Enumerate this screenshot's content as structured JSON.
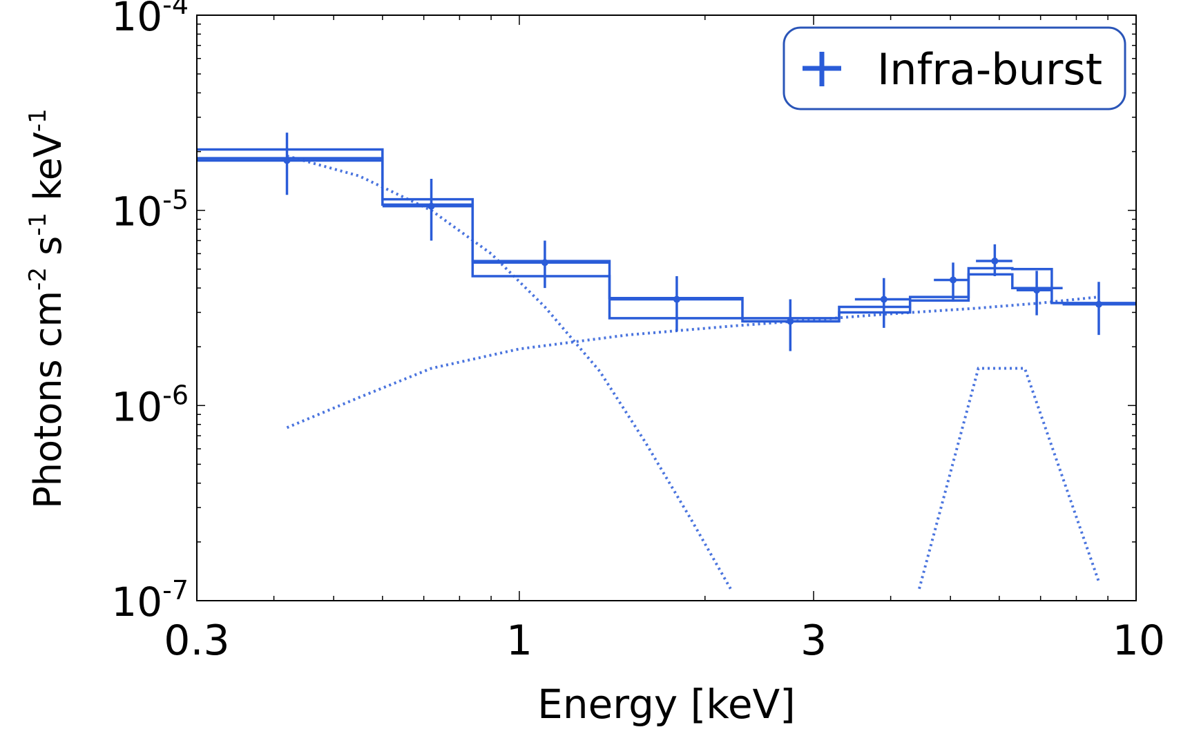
{
  "chart_data": {
    "type": "scatter",
    "title": "",
    "xlabel": "Energy [keV]",
    "ylabel_parts": [
      "Photons cm",
      "-2",
      " s",
      "-1",
      " keV",
      "-1"
    ],
    "xscale": "log",
    "yscale": "log",
    "xlim": [
      0.3,
      10
    ],
    "ylim": [
      1e-07,
      0.0001
    ],
    "x_ticks": [
      {
        "value": 0.3,
        "label": "0.3"
      },
      {
        "value": 1,
        "label": "1"
      },
      {
        "value": 3,
        "label": "3"
      },
      {
        "value": 10,
        "label": "10"
      }
    ],
    "y_ticks": [
      {
        "value": 0.0001,
        "base": "10",
        "exp": "-4"
      },
      {
        "value": 1e-05,
        "base": "10",
        "exp": "-5"
      },
      {
        "value": 1e-06,
        "base": "10",
        "exp": "-6"
      },
      {
        "value": 1e-07,
        "base": "10",
        "exp": "-7"
      }
    ],
    "legend": {
      "position": "top-right",
      "label": "Infra-burst"
    },
    "colors": {
      "series": "#2a5cd8",
      "frame": "#000000",
      "legend_border": "#2a55b8"
    },
    "points": [
      {
        "x": 0.42,
        "xlo": 0.3,
        "xhi": 0.6,
        "y": 1.8e-05,
        "ylo": 1.2e-05,
        "yhi": 2.5e-05
      },
      {
        "x": 0.72,
        "xlo": 0.6,
        "xhi": 0.84,
        "y": 1.05e-05,
        "ylo": 7e-06,
        "yhi": 1.45e-05
      },
      {
        "x": 1.1,
        "xlo": 0.84,
        "xhi": 1.4,
        "y": 5.4e-06,
        "ylo": 4e-06,
        "yhi": 7e-06
      },
      {
        "x": 1.8,
        "xlo": 1.4,
        "xhi": 2.3,
        "y": 3.5e-06,
        "ylo": 2.4e-06,
        "yhi": 4.6e-06
      },
      {
        "x": 2.75,
        "xlo": 2.3,
        "xhi": 3.3,
        "y": 2.7e-06,
        "ylo": 1.9e-06,
        "yhi": 3.5e-06
      },
      {
        "x": 3.9,
        "xlo": 3.5,
        "xhi": 4.3,
        "y": 3.5e-06,
        "ylo": 2.5e-06,
        "yhi": 4.5e-06
      },
      {
        "x": 5.05,
        "xlo": 4.7,
        "xhi": 5.35,
        "y": 4.4e-06,
        "ylo": 3.4e-06,
        "yhi": 5.4e-06
      },
      {
        "x": 5.9,
        "xlo": 5.5,
        "xhi": 6.3,
        "y": 5.5e-06,
        "ylo": 4.6e-06,
        "yhi": 6.7e-06
      },
      {
        "x": 6.9,
        "xlo": 6.4,
        "xhi": 7.3,
        "y": 3.9e-06,
        "ylo": 2.9e-06,
        "yhi": 4.9e-06
      },
      {
        "x": 8.7,
        "xlo": 7.6,
        "xhi": 10,
        "y": 3.3e-06,
        "ylo": 2.3e-06,
        "yhi": 4.3e-06
      }
    ],
    "model_upper": [
      [
        0.3,
        2.05e-05
      ],
      [
        0.6,
        2.05e-05
      ],
      [
        0.6,
        1.14e-05
      ],
      [
        0.84,
        1.14e-05
      ],
      [
        0.84,
        5.5e-06
      ],
      [
        1.4,
        5.5e-06
      ],
      [
        1.4,
        3.55e-06
      ],
      [
        2.3,
        3.55e-06
      ],
      [
        2.3,
        2.8e-06
      ],
      [
        3.3,
        2.8e-06
      ],
      [
        3.3,
        3.2e-06
      ],
      [
        4.3,
        3.2e-06
      ],
      [
        4.3,
        3.6e-06
      ],
      [
        5.35,
        3.6e-06
      ],
      [
        5.35,
        5.05e-06
      ],
      [
        6.3,
        5.05e-06
      ],
      [
        6.3,
        5e-06
      ],
      [
        7.3,
        5e-06
      ],
      [
        7.3,
        4e-06
      ],
      [
        7.6,
        4e-06
      ]
    ],
    "model_lower": [
      [
        0.3,
        1.85e-05
      ],
      [
        0.6,
        1.85e-05
      ],
      [
        0.6,
        1.07e-05
      ],
      [
        0.84,
        1.07e-05
      ],
      [
        0.84,
        4.6e-06
      ],
      [
        1.4,
        4.6e-06
      ],
      [
        1.4,
        2.8e-06
      ],
      [
        2.3,
        2.8e-06
      ],
      [
        2.3,
        2.7e-06
      ],
      [
        3.3,
        2.7e-06
      ],
      [
        3.3,
        3e-06
      ],
      [
        4.3,
        3e-06
      ],
      [
        4.3,
        3.45e-06
      ],
      [
        5.35,
        3.45e-06
      ],
      [
        5.35,
        4.7e-06
      ],
      [
        6.3,
        4.7e-06
      ],
      [
        6.3,
        4e-06
      ],
      [
        7.3,
        4e-06
      ],
      [
        7.3,
        3.35e-06
      ],
      [
        10,
        3.35e-06
      ]
    ],
    "component_soft": [
      [
        0.42,
        1.9e-05
      ],
      [
        0.55,
        1.5e-05
      ],
      [
        0.72,
        1e-05
      ],
      [
        0.9,
        6e-06
      ],
      [
        1.1,
        3.2e-06
      ],
      [
        1.35,
        1.5e-06
      ],
      [
        1.6,
        6.5e-07
      ],
      [
        1.9,
        2.6e-07
      ],
      [
        2.2,
        1.15e-07
      ]
    ],
    "component_powerlaw": [
      [
        0.42,
        7.7e-07
      ],
      [
        0.55,
        1.1e-06
      ],
      [
        0.72,
        1.55e-06
      ],
      [
        1.0,
        1.95e-06
      ],
      [
        1.5,
        2.3e-06
      ],
      [
        2.2,
        2.55e-06
      ],
      [
        3.0,
        2.75e-06
      ],
      [
        4.0,
        2.95e-06
      ],
      [
        5.5,
        3.15e-06
      ],
      [
        7.0,
        3.35e-06
      ],
      [
        8.7,
        3.6e-06
      ]
    ],
    "component_line": [
      [
        4.45,
        1.15e-07
      ],
      [
        5.55,
        1.55e-06
      ],
      [
        6.6,
        1.55e-06
      ],
      [
        8.7,
        1.25e-07
      ]
    ]
  }
}
